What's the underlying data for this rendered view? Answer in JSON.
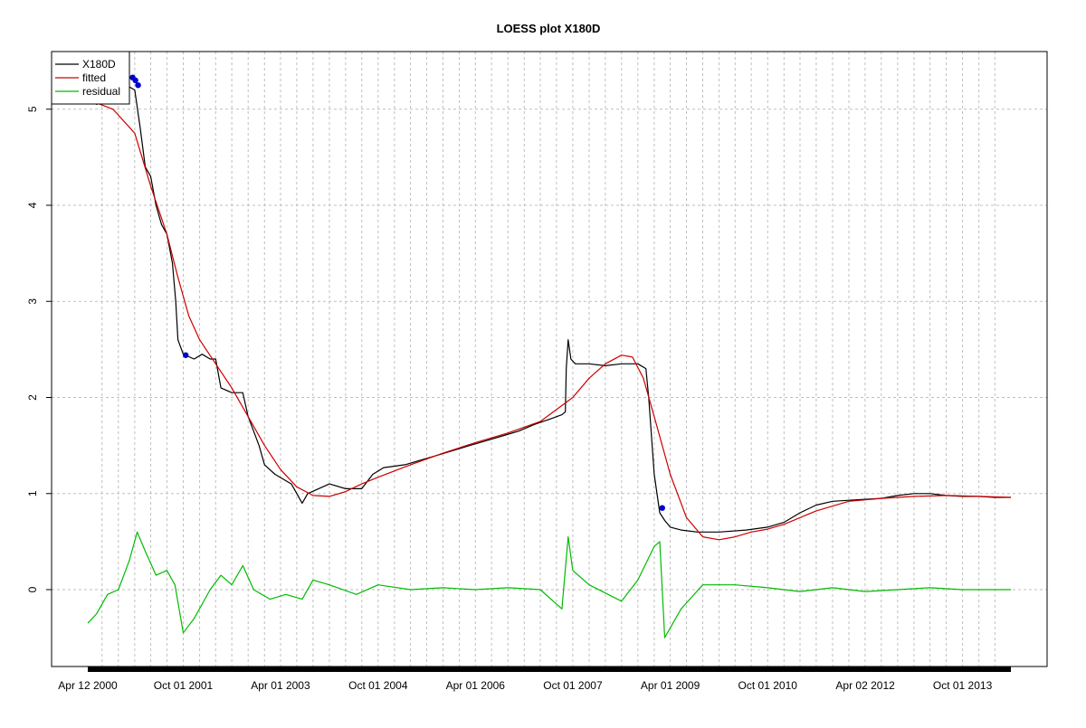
{
  "chart_data": {
    "type": "line",
    "title": "LOESS plot X180D",
    "xlabel": "",
    "ylabel": "",
    "x_range": [
      "2000-04-12",
      "2014-06-30"
    ],
    "ylim": [
      -0.8,
      5.6
    ],
    "y_ticks": [
      0,
      1,
      2,
      3,
      4,
      5
    ],
    "x_tick_labels": [
      {
        "date": "2000-04-12",
        "label": "Apr 12 2000"
      },
      {
        "date": "2001-10-01",
        "label": "Oct 01 2001"
      },
      {
        "date": "2003-04-01",
        "label": "Apr 01 2003"
      },
      {
        "date": "2004-10-01",
        "label": "Oct 01 2004"
      },
      {
        "date": "2006-04-01",
        "label": "Apr 01 2006"
      },
      {
        "date": "2007-10-01",
        "label": "Oct 01 2007"
      },
      {
        "date": "2009-04-01",
        "label": "Apr 01 2009"
      },
      {
        "date": "2010-10-01",
        "label": "Oct 01 2010"
      },
      {
        "date": "2012-04-02",
        "label": "Apr 02 2012"
      },
      {
        "date": "2013-10-01",
        "label": "Oct 01 2013"
      }
    ],
    "grid": true,
    "legend_position": "top-left",
    "series": [
      {
        "name": "X180D",
        "color": "#000000",
        "points": [
          [
            "2000-04-12",
            5.1
          ],
          [
            "2000-06-01",
            5.05
          ],
          [
            "2000-08-01",
            5.1
          ],
          [
            "2000-10-01",
            5.15
          ],
          [
            "2000-11-15",
            5.25
          ],
          [
            "2001-01-01",
            5.2
          ],
          [
            "2001-02-01",
            4.8
          ],
          [
            "2001-03-01",
            4.4
          ],
          [
            "2001-04-01",
            4.3
          ],
          [
            "2001-05-01",
            4.0
          ],
          [
            "2001-06-01",
            3.8
          ],
          [
            "2001-07-01",
            3.7
          ],
          [
            "2001-08-01",
            3.4
          ],
          [
            "2001-08-20",
            3.0
          ],
          [
            "2001-09-01",
            2.6
          ],
          [
            "2001-10-01",
            2.45
          ],
          [
            "2001-12-01",
            2.4
          ],
          [
            "2002-01-15",
            2.45
          ],
          [
            "2002-03-01",
            2.4
          ],
          [
            "2002-04-01",
            2.4
          ],
          [
            "2002-05-01",
            2.1
          ],
          [
            "2002-07-01",
            2.05
          ],
          [
            "2002-09-01",
            2.05
          ],
          [
            "2002-10-01",
            1.8
          ],
          [
            "2002-12-01",
            1.5
          ],
          [
            "2003-01-01",
            1.3
          ],
          [
            "2003-03-01",
            1.2
          ],
          [
            "2003-06-01",
            1.1
          ],
          [
            "2003-08-01",
            0.9
          ],
          [
            "2003-09-01",
            1.0
          ],
          [
            "2003-11-01",
            1.05
          ],
          [
            "2004-01-01",
            1.1
          ],
          [
            "2004-04-01",
            1.05
          ],
          [
            "2004-07-01",
            1.05
          ],
          [
            "2004-09-01",
            1.2
          ],
          [
            "2004-11-01",
            1.27
          ],
          [
            "2005-03-01",
            1.3
          ],
          [
            "2005-06-01",
            1.35
          ],
          [
            "2005-09-01",
            1.4
          ],
          [
            "2005-12-01",
            1.45
          ],
          [
            "2006-03-01",
            1.5
          ],
          [
            "2006-06-01",
            1.55
          ],
          [
            "2006-09-01",
            1.6
          ],
          [
            "2006-12-01",
            1.65
          ],
          [
            "2007-03-01",
            1.72
          ],
          [
            "2007-06-01",
            1.78
          ],
          [
            "2007-08-01",
            1.82
          ],
          [
            "2007-08-20",
            1.85
          ],
          [
            "2007-08-25",
            2.3
          ],
          [
            "2007-09-05",
            2.6
          ],
          [
            "2007-09-20",
            2.4
          ],
          [
            "2007-10-15",
            2.35
          ],
          [
            "2008-01-01",
            2.35
          ],
          [
            "2008-04-01",
            2.33
          ],
          [
            "2008-07-01",
            2.35
          ],
          [
            "2008-10-01",
            2.35
          ],
          [
            "2008-11-15",
            2.3
          ],
          [
            "2008-12-01",
            2.0
          ],
          [
            "2009-01-01",
            1.2
          ],
          [
            "2009-02-01",
            0.8
          ],
          [
            "2009-03-01",
            0.72
          ],
          [
            "2009-04-01",
            0.65
          ],
          [
            "2009-06-01",
            0.62
          ],
          [
            "2009-09-01",
            0.6
          ],
          [
            "2010-01-01",
            0.6
          ],
          [
            "2010-06-01",
            0.62
          ],
          [
            "2010-10-01",
            0.65
          ],
          [
            "2011-01-01",
            0.7
          ],
          [
            "2011-04-01",
            0.8
          ],
          [
            "2011-07-01",
            0.88
          ],
          [
            "2011-10-01",
            0.92
          ],
          [
            "2012-01-01",
            0.93
          ],
          [
            "2012-04-01",
            0.94
          ],
          [
            "2012-07-01",
            0.95
          ],
          [
            "2012-10-01",
            0.98
          ],
          [
            "2013-01-01",
            1.0
          ],
          [
            "2013-04-01",
            1.0
          ],
          [
            "2013-07-01",
            0.98
          ],
          [
            "2013-10-01",
            0.97
          ],
          [
            "2014-01-01",
            0.97
          ],
          [
            "2014-04-01",
            0.96
          ],
          [
            "2014-06-30",
            0.96
          ]
        ]
      },
      {
        "name": "fitted",
        "color": "#cc0000",
        "points": [
          [
            "2000-04-12",
            5.1
          ],
          [
            "2000-09-01",
            5.0
          ],
          [
            "2001-01-01",
            4.75
          ],
          [
            "2001-04-01",
            4.2
          ],
          [
            "2001-07-01",
            3.7
          ],
          [
            "2001-09-01",
            3.25
          ],
          [
            "2001-11-01",
            2.85
          ],
          [
            "2002-01-01",
            2.6
          ],
          [
            "2002-04-01",
            2.35
          ],
          [
            "2002-07-01",
            2.1
          ],
          [
            "2002-10-01",
            1.8
          ],
          [
            "2003-01-01",
            1.5
          ],
          [
            "2003-04-01",
            1.25
          ],
          [
            "2003-07-01",
            1.07
          ],
          [
            "2003-10-01",
            0.98
          ],
          [
            "2004-01-01",
            0.97
          ],
          [
            "2004-04-01",
            1.02
          ],
          [
            "2004-07-01",
            1.1
          ],
          [
            "2004-10-01",
            1.17
          ],
          [
            "2005-04-01",
            1.3
          ],
          [
            "2005-10-01",
            1.42
          ],
          [
            "2006-04-01",
            1.53
          ],
          [
            "2006-10-01",
            1.63
          ],
          [
            "2007-04-01",
            1.75
          ],
          [
            "2007-10-01",
            2.0
          ],
          [
            "2008-01-01",
            2.2
          ],
          [
            "2008-04-01",
            2.35
          ],
          [
            "2008-07-01",
            2.44
          ],
          [
            "2008-09-01",
            2.42
          ],
          [
            "2008-11-01",
            2.2
          ],
          [
            "2009-01-01",
            1.8
          ],
          [
            "2009-04-01",
            1.2
          ],
          [
            "2009-07-01",
            0.75
          ],
          [
            "2009-10-01",
            0.55
          ],
          [
            "2010-01-01",
            0.52
          ],
          [
            "2010-04-01",
            0.55
          ],
          [
            "2010-07-01",
            0.6
          ],
          [
            "2010-10-01",
            0.63
          ],
          [
            "2011-01-01",
            0.68
          ],
          [
            "2011-07-01",
            0.82
          ],
          [
            "2012-01-01",
            0.92
          ],
          [
            "2012-07-01",
            0.95
          ],
          [
            "2013-01-01",
            0.97
          ],
          [
            "2013-07-01",
            0.98
          ],
          [
            "2014-01-01",
            0.97
          ],
          [
            "2014-06-30",
            0.96
          ]
        ]
      },
      {
        "name": "residual",
        "color": "#00bb00",
        "points": [
          [
            "2000-04-12",
            -0.35
          ],
          [
            "2000-06-01",
            -0.25
          ],
          [
            "2000-08-01",
            -0.05
          ],
          [
            "2000-10-01",
            0.0
          ],
          [
            "2000-12-01",
            0.3
          ],
          [
            "2001-01-15",
            0.6
          ],
          [
            "2001-03-01",
            0.4
          ],
          [
            "2001-05-01",
            0.15
          ],
          [
            "2001-07-01",
            0.2
          ],
          [
            "2001-08-15",
            0.05
          ],
          [
            "2001-10-01",
            -0.45
          ],
          [
            "2001-12-01",
            -0.3
          ],
          [
            "2002-03-01",
            0.0
          ],
          [
            "2002-05-01",
            0.15
          ],
          [
            "2002-07-01",
            0.05
          ],
          [
            "2002-09-01",
            0.25
          ],
          [
            "2002-11-01",
            0.0
          ],
          [
            "2003-02-01",
            -0.1
          ],
          [
            "2003-05-01",
            -0.05
          ],
          [
            "2003-08-01",
            -0.1
          ],
          [
            "2003-10-01",
            0.1
          ],
          [
            "2004-01-01",
            0.05
          ],
          [
            "2004-06-01",
            -0.05
          ],
          [
            "2004-10-01",
            0.05
          ],
          [
            "2005-04-01",
            0.0
          ],
          [
            "2005-10-01",
            0.02
          ],
          [
            "2006-04-01",
            0.0
          ],
          [
            "2006-10-01",
            0.02
          ],
          [
            "2007-04-01",
            0.0
          ],
          [
            "2007-08-01",
            -0.2
          ],
          [
            "2007-09-05",
            0.55
          ],
          [
            "2007-10-01",
            0.2
          ],
          [
            "2008-01-01",
            0.05
          ],
          [
            "2008-07-01",
            -0.12
          ],
          [
            "2008-10-01",
            0.1
          ],
          [
            "2009-01-01",
            0.45
          ],
          [
            "2009-02-01",
            0.5
          ],
          [
            "2009-03-01",
            -0.5
          ],
          [
            "2009-06-01",
            -0.2
          ],
          [
            "2009-10-01",
            0.05
          ],
          [
            "2010-04-01",
            0.05
          ],
          [
            "2010-10-01",
            0.02
          ],
          [
            "2011-04-01",
            -0.02
          ],
          [
            "2011-10-01",
            0.02
          ],
          [
            "2012-04-01",
            -0.02
          ],
          [
            "2012-10-01",
            0.0
          ],
          [
            "2013-04-01",
            0.02
          ],
          [
            "2013-10-01",
            0.0
          ],
          [
            "2014-06-30",
            0.0
          ]
        ]
      }
    ],
    "highlight_points": {
      "color": "#0000cc",
      "points": [
        [
          "2000-12-20",
          5.33
        ],
        [
          "2001-01-05",
          5.3
        ],
        [
          "2001-01-20",
          5.25
        ],
        [
          "2001-10-15",
          2.44
        ],
        [
          "2009-02-15",
          0.85
        ]
      ]
    }
  }
}
